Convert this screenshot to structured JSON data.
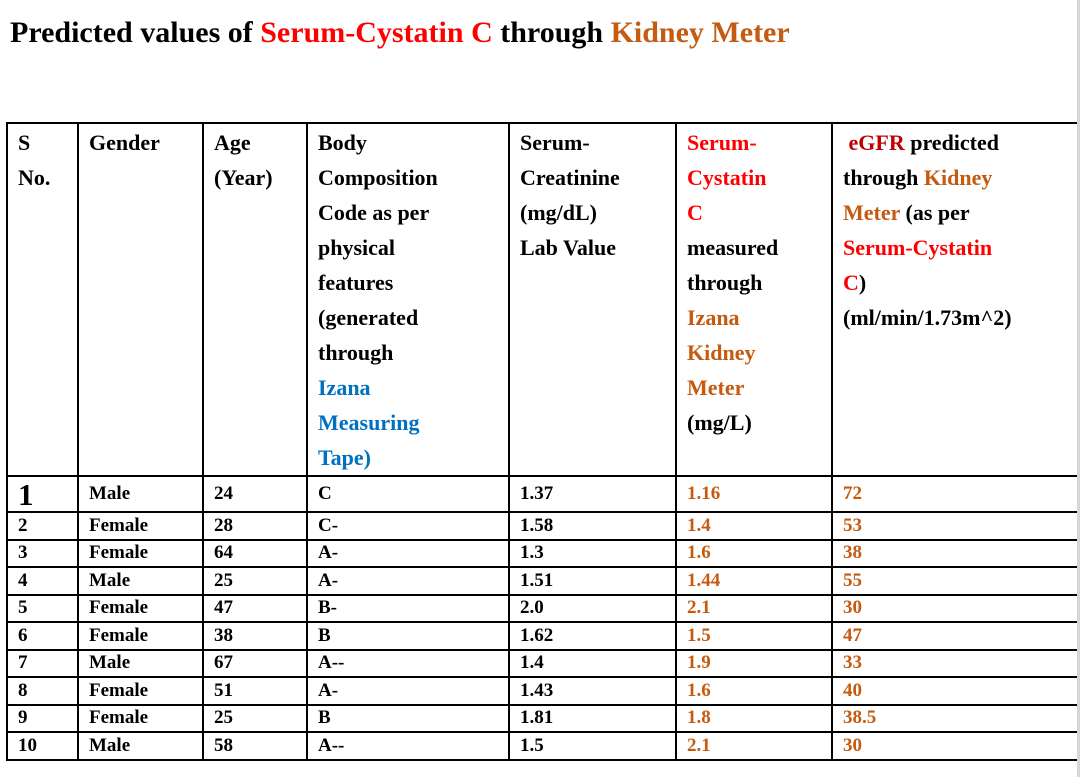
{
  "palette": {
    "black": "#000000",
    "red": "#FF0000",
    "darkred": "#C00000",
    "brown": "#C55A11",
    "blue": "#0070C0"
  },
  "title": {
    "segments": [
      {
        "text": "Predicted values of ",
        "color": "black"
      },
      {
        "text": "Serum-Cystatin C",
        "color": "red"
      },
      {
        "text": " through ",
        "color": "black"
      },
      {
        "text": "Kidney Meter",
        "color": "brown"
      }
    ]
  },
  "table": {
    "columns": [
      {
        "key": "sno",
        "segments": [
          {
            "text": "S\nNo.",
            "color": "black"
          }
        ]
      },
      {
        "key": "gender",
        "segments": [
          {
            "text": "Gender",
            "color": "black"
          }
        ]
      },
      {
        "key": "age",
        "segments": [
          {
            "text": "Age\n(Year)",
            "color": "black"
          }
        ]
      },
      {
        "key": "body_code",
        "segments": [
          {
            "text": "Body\nComposition\nCode as per\nphysical\nfeatures\n(generated\nthrough\n",
            "color": "black"
          },
          {
            "text": "Izana\nMeasuring\nTape)",
            "color": "blue"
          }
        ]
      },
      {
        "key": "creatinine",
        "segments": [
          {
            "text": "Serum-\nCreatinine\n(mg/dL)\nLab Value",
            "color": "black"
          }
        ]
      },
      {
        "key": "cystatin",
        "segments": [
          {
            "text": "Serum-\nCystatin\nC\n",
            "color": "red"
          },
          {
            "text": "measured\nthrough\n",
            "color": "black"
          },
          {
            "text": "Izana\nKidney\nMeter\n",
            "color": "brown"
          },
          {
            "text": "(mg/L)",
            "color": "black"
          }
        ]
      },
      {
        "key": "egfr",
        "segments": [
          {
            "text": " eGFR",
            "color": "darkred"
          },
          {
            "text": " predicted\nthrough ",
            "color": "black"
          },
          {
            "text": "Kidney\nMeter",
            "color": "brown"
          },
          {
            "text": " (as per\n",
            "color": "black"
          },
          {
            "text": "Serum-Cystatin\nC",
            "color": "red"
          },
          {
            "text": ")\n(ml/min/1.73m^2)",
            "color": "black"
          }
        ]
      }
    ],
    "rows": [
      {
        "sno": "1",
        "gender": "Male",
        "age": "24",
        "body_code": "C",
        "creatinine": "1.37",
        "cystatin": "1.16",
        "egfr": "72"
      },
      {
        "sno": "2",
        "gender": "Female",
        "age": "28",
        "body_code": "C-",
        "creatinine": "1.58",
        "cystatin": "1.4",
        "egfr": "53"
      },
      {
        "sno": "3",
        "gender": "Female",
        "age": "64",
        "body_code": "A-",
        "creatinine": "1.3",
        "cystatin": "1.6",
        "egfr": "38"
      },
      {
        "sno": "4",
        "gender": "Male",
        "age": "25",
        "body_code": "A-",
        "creatinine": "1.51",
        "cystatin": "1.44",
        "egfr": "55"
      },
      {
        "sno": "5",
        "gender": "Female",
        "age": "47",
        "body_code": "B-",
        "creatinine": "2.0",
        "cystatin": "2.1",
        "egfr": "30"
      },
      {
        "sno": "6",
        "gender": "Female",
        "age": "38",
        "body_code": "B",
        "creatinine": "1.62",
        "cystatin": "1.5",
        "egfr": "47"
      },
      {
        "sno": "7",
        "gender": "Male",
        "age": "67",
        "body_code": "A--",
        "creatinine": "1.4",
        "cystatin": "1.9",
        "egfr": "33"
      },
      {
        "sno": "8",
        "gender": "Female",
        "age": "51",
        "body_code": "A-",
        "creatinine": "1.43",
        "cystatin": "1.6",
        "egfr": "40"
      },
      {
        "sno": "9",
        "gender": "Female",
        "age": "25",
        "body_code": "B",
        "creatinine": "1.81",
        "cystatin": "1.8",
        "egfr": "38.5"
      },
      {
        "sno": "10",
        "gender": "Male",
        "age": "58",
        "body_code": "A--",
        "creatinine": "1.5",
        "cystatin": "2.1",
        "egfr": "30"
      }
    ]
  }
}
